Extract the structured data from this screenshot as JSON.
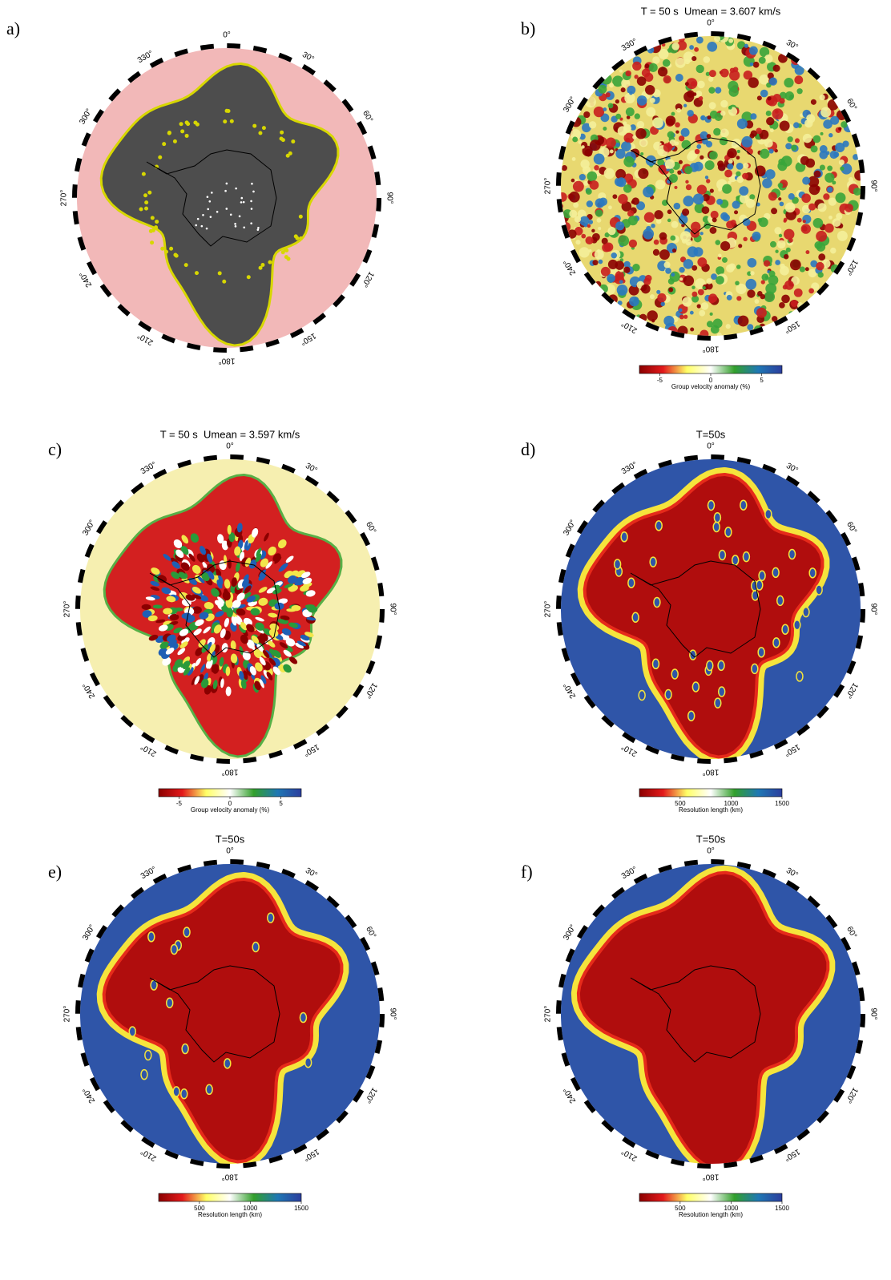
{
  "panels": [
    {
      "label": "a)",
      "background_color": "#f2b8b8",
      "coverage_color": "#4d4d4d",
      "halo_color": "#d7d700",
      "lon_labels": [
        {
          "value": 0,
          "label": "0°"
        },
        {
          "value": 30,
          "label": "30°"
        },
        {
          "value": 60,
          "label": "60°"
        },
        {
          "value": 90,
          "label": "90°"
        },
        {
          "value": 120,
          "label": "120°"
        },
        {
          "value": 150,
          "label": "150°"
        },
        {
          "value": 180,
          "label": "180°"
        },
        {
          "value": 210,
          "label": "210°"
        },
        {
          "value": 240,
          "label": "240°"
        },
        {
          "value": 270,
          "label": "270°"
        },
        {
          "value": 300,
          "label": "300°"
        },
        {
          "value": 330,
          "label": "330°"
        }
      ]
    },
    {
      "label": "b)",
      "title": "T = 50 s  Umean = 3.607 km/s",
      "background_color": "#e8d870",
      "coverage_color": "#c81e1e",
      "halo_color": "#3aa53a",
      "lon_labels": [
        {
          "value": 0,
          "label": "0°"
        },
        {
          "value": 30,
          "label": "30°"
        },
        {
          "value": 60,
          "label": "60°"
        },
        {
          "value": 90,
          "label": "90°"
        },
        {
          "value": 120,
          "label": "120°"
        },
        {
          "value": 150,
          "label": "150°"
        },
        {
          "value": 180,
          "label": "180°"
        },
        {
          "value": 210,
          "label": "210°"
        },
        {
          "value": 240,
          "label": "240°"
        },
        {
          "value": 270,
          "label": "270°"
        },
        {
          "value": 300,
          "label": "300°"
        },
        {
          "value": 330,
          "label": "330°"
        }
      ],
      "colorbar": {
        "lim": [
          -7,
          7
        ],
        "ticks": [
          -5,
          0,
          5
        ],
        "label": "Group velocity anomaly (%)",
        "colors": [
          "#8b0000",
          "#e31a1c",
          "#ffff66",
          "#ffffff",
          "#33a02c",
          "#1f78b4",
          "#2c3e9e"
        ]
      }
    },
    {
      "label": "c)",
      "title": "T = 50 s  Umean = 3.597 km/s",
      "background_color": "#f6efb0",
      "coverage_color": "#d32020",
      "halo_color": "#57b047",
      "lon_labels": [
        {
          "value": 0,
          "label": "0°"
        },
        {
          "value": 30,
          "label": "30°"
        },
        {
          "value": 60,
          "label": "60°"
        },
        {
          "value": 90,
          "label": "90°"
        },
        {
          "value": 120,
          "label": "120°"
        },
        {
          "value": 150,
          "label": "150°"
        },
        {
          "value": 180,
          "label": "180°"
        },
        {
          "value": 210,
          "label": "210°"
        },
        {
          "value": 240,
          "label": "240°"
        },
        {
          "value": 270,
          "label": "270°"
        },
        {
          "value": 300,
          "label": "300°"
        },
        {
          "value": 330,
          "label": "330°"
        }
      ],
      "colorbar": {
        "lim": [
          -7,
          7
        ],
        "ticks": [
          -5,
          0,
          5
        ],
        "label": "Group velocity anomaly (%)",
        "colors": [
          "#8b0000",
          "#e31a1c",
          "#ffff66",
          "#ffffff",
          "#33a02c",
          "#1f78b4",
          "#2c3e9e"
        ]
      }
    },
    {
      "label": "d)",
      "title": "T=50s",
      "background_color": "#2f55a8",
      "coverage_color": "#b00d0d",
      "halo_color": "#f5e43c",
      "lon_labels": [
        {
          "value": 0,
          "label": "0°"
        },
        {
          "value": 30,
          "label": "30°"
        },
        {
          "value": 60,
          "label": "60°"
        },
        {
          "value": 90,
          "label": "90°"
        },
        {
          "value": 120,
          "label": "120°"
        },
        {
          "value": 150,
          "label": "150°"
        },
        {
          "value": 180,
          "label": "180°"
        },
        {
          "value": 210,
          "label": "210°"
        },
        {
          "value": 240,
          "label": "240°"
        },
        {
          "value": 270,
          "label": "270°"
        },
        {
          "value": 300,
          "label": "300°"
        },
        {
          "value": 330,
          "label": "330°"
        }
      ],
      "colorbar": {
        "lim": [
          100,
          1500
        ],
        "ticks": [
          500,
          1000,
          1500
        ],
        "label": "Resolution length (km)",
        "colors": [
          "#8b0000",
          "#e31a1c",
          "#ffff66",
          "#ffffff",
          "#33a02c",
          "#1f78b4",
          "#2c3e9e"
        ]
      }
    },
    {
      "label": "e)",
      "title": "T=50s",
      "background_color": "#2f55a8",
      "coverage_color": "#b00d0d",
      "halo_color": "#f5e43c",
      "lon_labels": [
        {
          "value": 0,
          "label": "0°"
        },
        {
          "value": 30,
          "label": "30°"
        },
        {
          "value": 60,
          "label": "60°"
        },
        {
          "value": 90,
          "label": "90°"
        },
        {
          "value": 120,
          "label": "120°"
        },
        {
          "value": 150,
          "label": "150°"
        },
        {
          "value": 180,
          "label": "180°"
        },
        {
          "value": 210,
          "label": "210°"
        },
        {
          "value": 240,
          "label": "240°"
        },
        {
          "value": 270,
          "label": "270°"
        },
        {
          "value": 300,
          "label": "300°"
        },
        {
          "value": 330,
          "label": "330°"
        }
      ],
      "colorbar": {
        "lim": [
          100,
          1500
        ],
        "ticks": [
          500,
          1000,
          1500
        ],
        "label": "Resolution length (km)",
        "colors": [
          "#8b0000",
          "#e31a1c",
          "#ffff66",
          "#ffffff",
          "#33a02c",
          "#1f78b4",
          "#2c3e9e"
        ]
      }
    },
    {
      "label": "f)",
      "title": "T=50s",
      "background_color": "#2f55a8",
      "coverage_color": "#b00d0d",
      "halo_color": "#f5e43c",
      "lon_labels": [
        {
          "value": 0,
          "label": "0°"
        },
        {
          "value": 30,
          "label": "30°"
        },
        {
          "value": 60,
          "label": "60°"
        },
        {
          "value": 90,
          "label": "90°"
        },
        {
          "value": 120,
          "label": "120°"
        },
        {
          "value": 150,
          "label": "150°"
        },
        {
          "value": 180,
          "label": "180°"
        },
        {
          "value": 210,
          "label": "210°"
        },
        {
          "value": 240,
          "label": "240°"
        },
        {
          "value": 270,
          "label": "270°"
        },
        {
          "value": 300,
          "label": "300°"
        },
        {
          "value": 330,
          "label": "330°"
        }
      ],
      "colorbar": {
        "lim": [
          100,
          1500
        ],
        "ticks": [
          500,
          1000,
          1500
        ],
        "label": "Resolution length (km)",
        "colors": [
          "#8b0000",
          "#e31a1c",
          "#ffff66",
          "#ffffff",
          "#33a02c",
          "#1f78b4",
          "#2c3e9e"
        ]
      }
    }
  ]
}
